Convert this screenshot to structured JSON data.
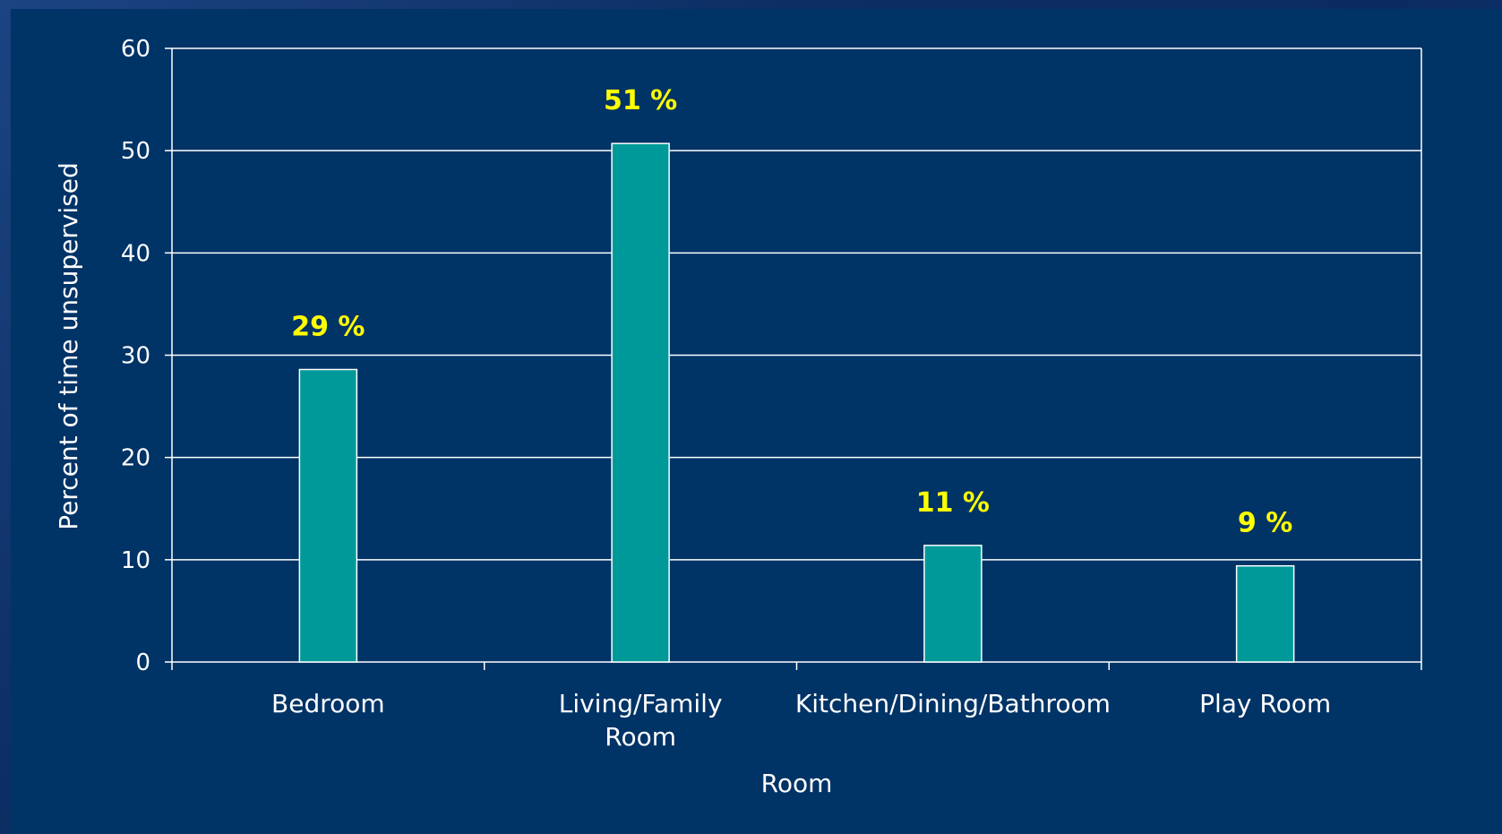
{
  "chart_data": {
    "type": "bar",
    "categories": [
      [
        "Bedroom"
      ],
      [
        "Living/Family",
        "Room"
      ],
      [
        "Kitchen/Dining/Bathroom"
      ],
      [
        "Play Room"
      ]
    ],
    "values": [
      28.6,
      50.7,
      11.4,
      9.4
    ],
    "data_labels": [
      "29 %",
      "51 %",
      "11 %",
      "9 %"
    ],
    "title": "",
    "xlabel": "Room",
    "ylabel": "Percent of time unsupervised",
    "ylim": [
      0,
      60
    ],
    "yticks": [
      0,
      10,
      20,
      30,
      40,
      50,
      60
    ],
    "grid": true,
    "legend": "none"
  },
  "colors": {
    "background": "#003366",
    "bar_fill": "#009999",
    "bar_stroke": "#ffffff",
    "gridline": "#ffffff",
    "axis_text": "#ffffff",
    "data_label": "#ffff00"
  }
}
